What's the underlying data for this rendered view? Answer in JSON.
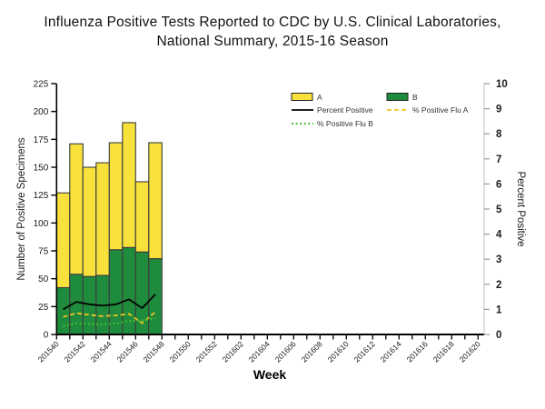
{
  "title": {
    "line1": "Influenza Positive Tests Reported to CDC by U.S. Clinical Laboratories,",
    "line2": "National Summary, 2015-16 Season"
  },
  "chart_data": {
    "type": "bar",
    "subtype": "stacked-bars-with-overlay-lines",
    "title": "Influenza Positive Tests Reported to CDC by U.S. Clinical Laboratories, National Summary, 2015-16 Season",
    "xlabel": "Week",
    "x_weeks_with_data": [
      "201540",
      "201541",
      "201542",
      "201543",
      "201544",
      "201545",
      "201546",
      "201547"
    ],
    "x_tick_labels": [
      "201540",
      "201542",
      "201544",
      "201546",
      "201548",
      "201550",
      "201552",
      "201602",
      "201604",
      "201606",
      "201608",
      "201610",
      "201612",
      "201614",
      "201616",
      "201618",
      "201620"
    ],
    "x_total_weekly_ticks": 33,
    "y_left": {
      "label": "Number of Positive Specimens",
      "min": 0,
      "max": 225,
      "step": 25
    },
    "y_right": {
      "label": "Percent Positive",
      "min": 0,
      "max": 10,
      "step": 1
    },
    "grid": false,
    "legend_position": "top-inside",
    "series": [
      {
        "name": "A",
        "type": "bar",
        "stack_order": 2,
        "color": "#f8e13b",
        "values": [
          85,
          117,
          98,
          101,
          96,
          112,
          63,
          104
        ]
      },
      {
        "name": "B",
        "type": "bar",
        "stack_order": 1,
        "color": "#1e8b3d",
        "values": [
          42,
          54,
          52,
          53,
          76,
          78,
          74,
          68
        ]
      },
      {
        "name": "Percent Positive",
        "type": "line",
        "style": "solid",
        "color": "#000000",
        "axis": "right",
        "values": [
          1.0,
          1.3,
          1.2,
          1.15,
          1.2,
          1.4,
          1.05,
          1.6
        ]
      },
      {
        "name": "% Positive Flu A",
        "type": "line",
        "style": "dashed",
        "color": "#f0c420",
        "axis": "right",
        "values": [
          0.7,
          0.85,
          0.78,
          0.73,
          0.76,
          0.82,
          0.45,
          0.9
        ]
      },
      {
        "name": "% Positive Flu B",
        "type": "line",
        "style": "dotted",
        "color": "#45c130",
        "axis": "right",
        "values": [
          0.33,
          0.45,
          0.42,
          0.4,
          0.44,
          0.55,
          0.55,
          0.65
        ]
      }
    ],
    "bar_totals": [
      127,
      171,
      150,
      154,
      172,
      190,
      137,
      172
    ]
  },
  "style": {
    "bar_stroke": "#3c3c3c",
    "axis_color": "#000000",
    "right_axis_color": "#c8c8c8",
    "text_color": "#1a1a1a",
    "legend_text_color": "#333333"
  }
}
